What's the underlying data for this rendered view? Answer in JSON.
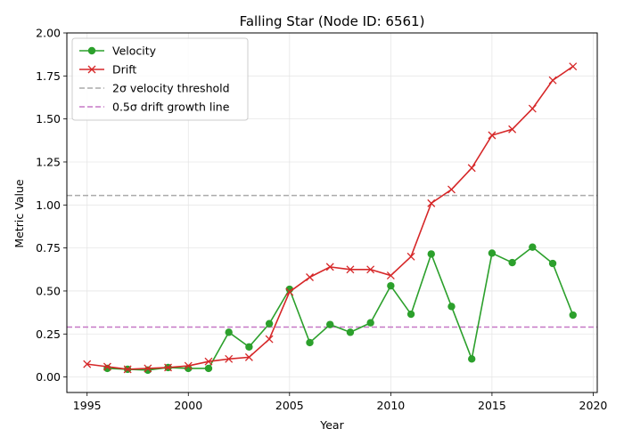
{
  "chart_data": {
    "type": "line",
    "title": "Falling Star (Node ID: 6561)",
    "xlabel": "Year",
    "ylabel": "Metric Value",
    "xlim": [
      1994,
      2020.2
    ],
    "ylim": [
      -0.09,
      2.0
    ],
    "xticks": [
      1995,
      2000,
      2005,
      2010,
      2015,
      2020
    ],
    "yticks": [
      0.0,
      0.25,
      0.5,
      0.75,
      1.0,
      1.25,
      1.5,
      1.75,
      2.0
    ],
    "ytick_labels": [
      "0.00",
      "0.25",
      "0.50",
      "0.75",
      "1.00",
      "1.25",
      "1.50",
      "1.75",
      "2.00"
    ],
    "grid": true,
    "legend_position": "top-left",
    "series": [
      {
        "name": "Velocity",
        "color": "#2ca02c",
        "marker": "circle",
        "x": [
          1996,
          1997,
          1998,
          1999,
          2000,
          2001,
          2002,
          2003,
          2004,
          2005,
          2006,
          2007,
          2008,
          2009,
          2010,
          2011,
          2012,
          2013,
          2014,
          2015,
          2016,
          2017,
          2018,
          2019
        ],
        "values": [
          0.05,
          0.045,
          0.04,
          0.055,
          0.05,
          0.05,
          0.26,
          0.175,
          0.31,
          0.51,
          0.2,
          0.305,
          0.26,
          0.315,
          0.53,
          0.365,
          0.715,
          0.41,
          0.105,
          0.72,
          0.665,
          0.755,
          0.66,
          0.36
        ]
      },
      {
        "name": "Drift",
        "color": "#d62728",
        "marker": "x",
        "x": [
          1995,
          1996,
          1997,
          1998,
          1999,
          2000,
          2001,
          2002,
          2003,
          2004,
          2005,
          2006,
          2007,
          2008,
          2009,
          2010,
          2011,
          2012,
          2013,
          2014,
          2015,
          2016,
          2017,
          2018,
          2019
        ],
        "values": [
          0.075,
          0.06,
          0.045,
          0.05,
          0.055,
          0.065,
          0.09,
          0.105,
          0.115,
          0.22,
          0.495,
          0.58,
          0.64,
          0.625,
          0.625,
          0.59,
          0.7,
          1.01,
          1.09,
          1.215,
          1.405,
          1.44,
          1.56,
          1.725,
          1.805
        ]
      }
    ],
    "reference_lines": [
      {
        "name": "2σ velocity threshold",
        "y": 1.055,
        "color": "#aaaaaa"
      },
      {
        "name": "0.5σ drift growth line",
        "y": 0.29,
        "color": "#c678c6"
      }
    ]
  }
}
